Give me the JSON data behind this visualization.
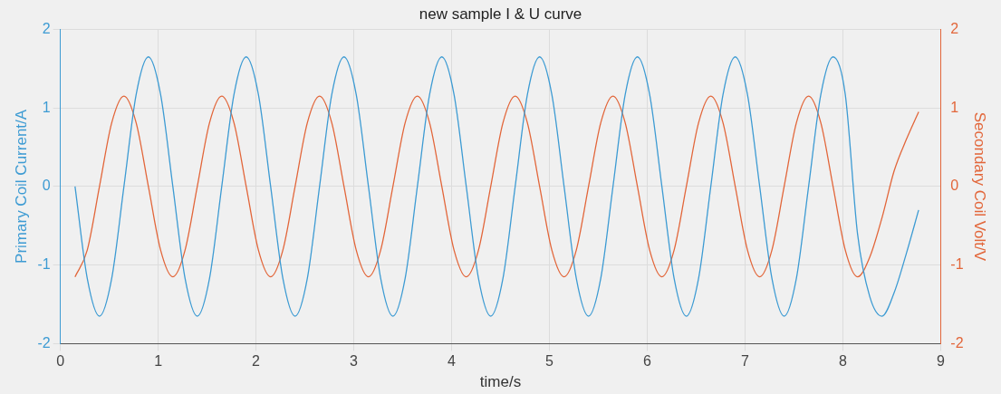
{
  "chart_data": {
    "type": "line",
    "title": "new sample I & U curve",
    "xlabel": "time/s",
    "ylabel": "Primary Coil Current/A",
    "y2label": "Secondary Coil Volt/V",
    "x": [
      0.15,
      0.275,
      0.4,
      0.525,
      0.65,
      0.775,
      0.9,
      1.025,
      1.15,
      1.275,
      1.4,
      1.525,
      1.65,
      1.775,
      1.9,
      2.025,
      2.15,
      2.275,
      2.4,
      2.525,
      2.65,
      2.775,
      2.9,
      3.025,
      3.15,
      3.275,
      3.4,
      3.525,
      3.65,
      3.775,
      3.9,
      4.025,
      4.15,
      4.275,
      4.4,
      4.525,
      4.65,
      4.775,
      4.9,
      5.025,
      5.15,
      5.275,
      5.4,
      5.525,
      5.65,
      5.775,
      5.9,
      6.025,
      6.15,
      6.275,
      6.4,
      6.525,
      6.65,
      6.775,
      6.9,
      7.025,
      7.15,
      7.275,
      7.4,
      7.525,
      7.65,
      7.775,
      7.9,
      8.025,
      8.15,
      8.275,
      8.4,
      8.525,
      8.65,
      8.775
    ],
    "series": [
      {
        "color": "#3d9bd3",
        "values": [
          0,
          -1.17,
          -1.65,
          -1.17,
          0,
          1.17,
          1.65,
          1.17,
          0,
          -1.17,
          -1.65,
          -1.17,
          0,
          1.17,
          1.65,
          1.17,
          0,
          -1.17,
          -1.65,
          -1.17,
          0,
          1.17,
          1.65,
          1.17,
          0,
          -1.17,
          -1.65,
          -1.17,
          0,
          1.17,
          1.65,
          1.17,
          0,
          -1.17,
          -1.65,
          -1.17,
          0,
          1.17,
          1.65,
          1.17,
          0,
          -1.17,
          -1.65,
          -1.17,
          0,
          1.17,
          1.65,
          1.17,
          0,
          -1.17,
          -1.65,
          -1.17,
          0,
          1.17,
          1.65,
          1.17,
          0,
          -1.17,
          -1.65,
          -1.17,
          0,
          1.17,
          1.65,
          1.17,
          -0.6,
          -1.4,
          -1.65,
          -1.35,
          -0.85,
          -0.3
        ]
      },
      {
        "color": "#e2663a",
        "axis": "y2",
        "values": [
          -1.15,
          -0.81,
          0,
          0.81,
          1.15,
          0.81,
          0,
          -0.81,
          -1.15,
          -0.81,
          0,
          0.81,
          1.15,
          0.81,
          0,
          -0.81,
          -1.15,
          -0.81,
          0,
          0.81,
          1.15,
          0.81,
          0,
          -0.81,
          -1.15,
          -0.81,
          0,
          0.81,
          1.15,
          0.81,
          0,
          -0.81,
          -1.15,
          -0.81,
          0,
          0.81,
          1.15,
          0.81,
          0,
          -0.81,
          -1.15,
          -0.81,
          0,
          0.81,
          1.15,
          0.81,
          0,
          -0.81,
          -1.15,
          -0.81,
          0,
          0.81,
          1.15,
          0.81,
          0,
          -0.81,
          -1.15,
          -0.81,
          0,
          0.81,
          1.15,
          0.81,
          0,
          -0.81,
          -1.15,
          -0.9,
          -0.4,
          0.2,
          0.6,
          0.95
        ]
      }
    ],
    "xlim": [
      0,
      9
    ],
    "xticks": [
      0,
      1,
      2,
      3,
      4,
      5,
      6,
      7,
      8,
      9
    ],
    "ylim": [
      -2,
      2
    ],
    "yticks": [
      -2,
      -1,
      0,
      1,
      2
    ],
    "y2lim": [
      -2,
      2
    ],
    "y2ticks": [
      -2,
      -1,
      0,
      1,
      2
    ],
    "grid": true
  }
}
